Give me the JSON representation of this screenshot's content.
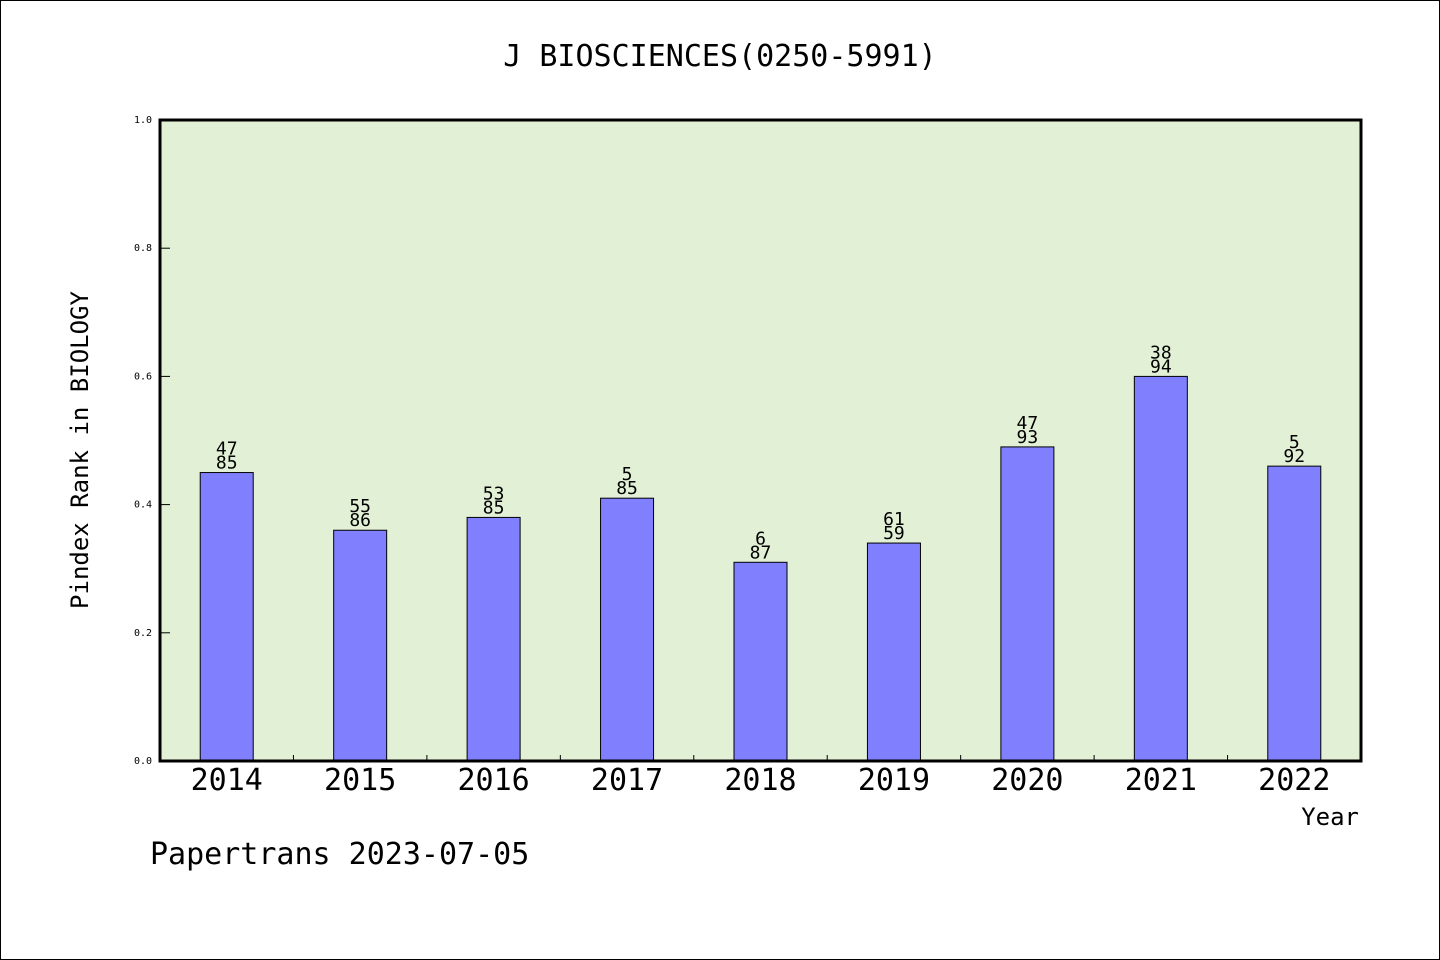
{
  "chart_data": {
    "type": "bar",
    "title": "J BIOSCIENCES(0250-5991)",
    "xlabel": "Year",
    "ylabel": "Pindex Rank in BIOLOGY",
    "ylim": [
      0.0,
      1.0
    ],
    "yticks": [
      "0.0",
      "0.2",
      "0.4",
      "0.6",
      "0.8",
      "1.0"
    ],
    "grid": false,
    "categories": [
      "2014",
      "2015",
      "2016",
      "2017",
      "2018",
      "2019",
      "2020",
      "2021",
      "2022"
    ],
    "values": [
      0.45,
      0.36,
      0.38,
      0.41,
      0.31,
      0.34,
      0.49,
      0.6,
      0.46
    ],
    "label_top": [
      "47",
      "55",
      "53",
      "5",
      "6",
      "61",
      "47",
      "38",
      "5"
    ],
    "label_bottom": [
      "85",
      "86",
      "85",
      "85",
      "87",
      "59",
      "93",
      "94",
      "92"
    ],
    "colors": {
      "bar": "#8080ff",
      "plot_background": "#e2f0d6"
    }
  },
  "footer": {
    "text": "Papertrans 2023-07-05"
  }
}
